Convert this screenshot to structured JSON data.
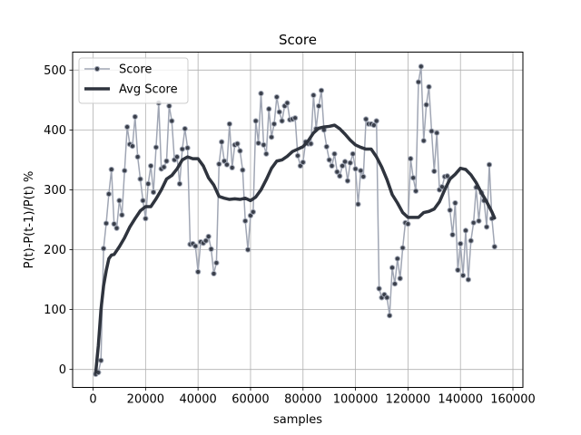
{
  "chart_data": {
    "type": "line",
    "title": "Score",
    "xlabel": "samples",
    "ylabel": "P(t)-P(t-1)/P(t) %",
    "xlim": [
      -7800,
      163800
    ],
    "ylim": [
      -30,
      530
    ],
    "xticks": [
      0,
      20000,
      40000,
      60000,
      80000,
      100000,
      120000,
      140000,
      160000
    ],
    "xtick_labels": [
      "0",
      "20000",
      "40000",
      "60000",
      "80000",
      "100000",
      "120000",
      "140000",
      "160000"
    ],
    "yticks": [
      0,
      100,
      200,
      300,
      400,
      500
    ],
    "ytick_labels": [
      "0",
      "100",
      "200",
      "300",
      "400",
      "500"
    ],
    "grid": true,
    "legend_position": "top-left",
    "colors": {
      "score": "#a0a6b4",
      "score_marker": "#3a3f4a",
      "avg": "#2f343e"
    },
    "series": [
      {
        "name": "Score",
        "x": [
          1000,
          2000,
          3000,
          4000,
          5000,
          6000,
          7000,
          8000,
          9000,
          10000,
          11000,
          12000,
          13000,
          14000,
          15000,
          16000,
          17000,
          18000,
          19000,
          20000,
          21000,
          22000,
          23000,
          24000,
          25000,
          26000,
          27000,
          28000,
          29000,
          30000,
          31000,
          32000,
          33000,
          34000,
          35000,
          36000,
          37000,
          38000,
          39000,
          40000,
          41000,
          42000,
          43000,
          44000,
          45000,
          46000,
          47000,
          48000,
          49000,
          50000,
          51000,
          52000,
          53000,
          54000,
          55000,
          56000,
          57000,
          58000,
          59000,
          60000,
          61000,
          62000,
          63000,
          64000,
          65000,
          66000,
          67000,
          68000,
          69000,
          70000,
          71000,
          72000,
          73000,
          74000,
          75000,
          76000,
          77000,
          78000,
          79000,
          80000,
          81000,
          82000,
          83000,
          84000,
          85000,
          86000,
          87000,
          88000,
          89000,
          90000,
          91000,
          92000,
          93000,
          94000,
          95000,
          96000,
          97000,
          98000,
          99000,
          100000,
          101000,
          102000,
          103000,
          104000,
          105000,
          106000,
          107000,
          108000,
          109000,
          110000,
          111000,
          112000,
          113000,
          114000,
          115000,
          116000,
          117000,
          118000,
          119000,
          120000,
          121000,
          122000,
          123000,
          124000,
          125000,
          126000,
          127000,
          128000,
          129000,
          130000,
          131000,
          132000,
          133000,
          134000,
          135000,
          136000,
          137000,
          138000,
          139000,
          140000,
          141000,
          142000,
          143000,
          144000,
          145000,
          146000,
          147000,
          148000,
          149000,
          150000,
          151000,
          152000,
          153000
        ],
        "y": [
          -8,
          -5,
          15,
          202,
          244,
          293,
          334,
          243,
          236,
          282,
          258,
          332,
          405,
          376,
          373,
          422,
          355,
          318,
          282,
          252,
          310,
          340,
          296,
          371,
          445,
          335,
          338,
          348,
          440,
          415,
          350,
          355,
          310,
          368,
          402,
          370,
          209,
          210,
          206,
          163,
          213,
          211,
          215,
          222,
          201,
          160,
          178,
          343,
          380,
          348,
          342,
          410,
          337,
          375,
          377,
          365,
          333,
          248,
          200,
          257,
          263,
          415,
          378,
          461,
          375,
          360,
          435,
          388,
          410,
          455,
          430,
          415,
          440,
          445,
          417,
          418,
          420,
          357,
          340,
          346,
          380,
          377,
          377,
          458,
          402,
          440,
          466,
          400,
          372,
          350,
          340,
          360,
          330,
          323,
          340,
          347,
          315,
          345,
          360,
          335,
          276,
          332,
          322,
          418,
          410,
          410,
          408,
          415,
          135,
          120,
          125,
          120,
          90,
          170,
          143,
          185,
          152,
          203,
          245,
          243,
          352,
          320,
          298,
          480,
          506,
          382,
          442,
          472,
          398,
          331,
          395,
          300,
          305,
          322,
          323,
          266,
          225,
          278,
          166,
          210,
          157,
          232,
          150,
          215,
          245,
          304,
          248,
          295,
          282,
          238,
          342,
          252,
          205
        ]
      },
      {
        "name": "Avg Score",
        "x": [
          1000,
          2000,
          3000,
          4000,
          5000,
          6000,
          7000,
          8000,
          10000,
          12000,
          14000,
          16000,
          18000,
          20000,
          22000,
          24000,
          26000,
          28000,
          30000,
          32000,
          34000,
          36000,
          38000,
          40000,
          42000,
          44000,
          46000,
          48000,
          50000,
          52000,
          54000,
          56000,
          58000,
          60000,
          62000,
          64000,
          66000,
          68000,
          70000,
          72000,
          74000,
          76000,
          78000,
          80000,
          82000,
          84000,
          86000,
          88000,
          90000,
          92000,
          94000,
          96000,
          98000,
          100000,
          102000,
          104000,
          106000,
          108000,
          110000,
          112000,
          114000,
          116000,
          118000,
          120000,
          122000,
          124000,
          126000,
          128000,
          130000,
          132000,
          134000,
          136000,
          138000,
          140000,
          142000,
          144000,
          146000,
          148000,
          150000,
          152000,
          153000
        ],
        "y": [
          -5,
          40,
          100,
          140,
          165,
          185,
          191,
          192,
          205,
          220,
          238,
          252,
          265,
          272,
          272,
          285,
          300,
          318,
          324,
          335,
          350,
          355,
          352,
          352,
          340,
          320,
          308,
          289,
          286,
          284,
          285,
          284,
          286,
          282,
          288,
          300,
          317,
          336,
          348,
          350,
          356,
          364,
          368,
          372,
          382,
          395,
          403,
          405,
          406,
          408,
          402,
          393,
          383,
          375,
          371,
          368,
          368,
          355,
          338,
          317,
          292,
          278,
          262,
          254,
          254,
          254,
          262,
          264,
          268,
          280,
          300,
          318,
          326,
          336,
          334,
          325,
          312,
          295,
          280,
          263,
          253
        ]
      }
    ]
  }
}
